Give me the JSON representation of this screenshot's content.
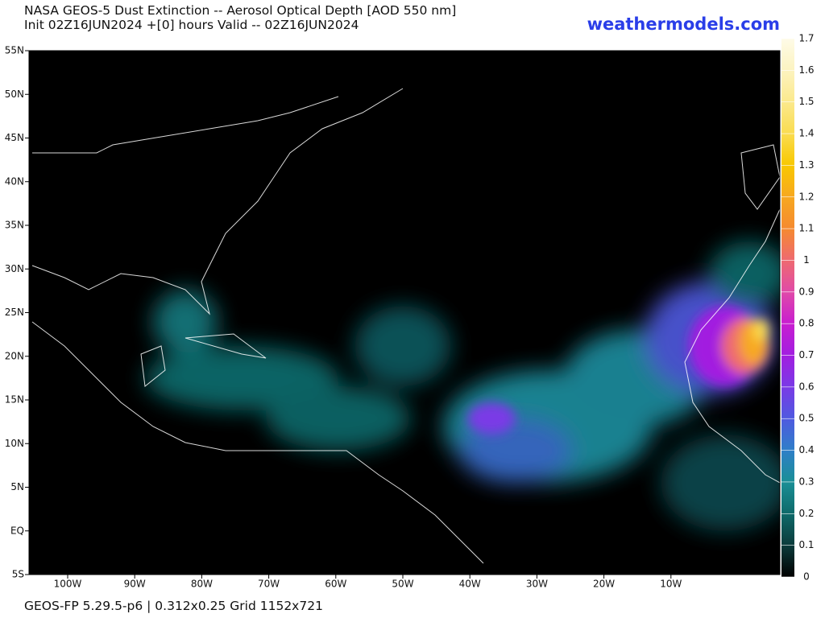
{
  "header": {
    "title": "NASA GEOS-5 Dust Extinction -- Aerosol Optical Depth [AOD 550 nm]",
    "subtitle": "Init 02Z16JUN2024 +[0] hours Valid -- 02Z16JUN2024",
    "site": "weathermodels.com"
  },
  "map": {
    "lat_labels": [
      "55N",
      "50N",
      "45N",
      "40N",
      "35N",
      "30N",
      "25N",
      "20N",
      "15N",
      "10N",
      "5N",
      "EQ",
      "5S"
    ],
    "lon_labels": [
      "100W",
      "90W",
      "80W",
      "70W",
      "60W",
      "50W",
      "40W",
      "30W",
      "20W",
      "10W"
    ]
  },
  "colorbar": {
    "ticks": [
      0,
      0.1,
      0.2,
      0.3,
      0.4,
      0.5,
      0.6,
      0.7,
      0.8,
      0.9,
      1,
      1.1,
      1.2,
      1.3,
      1.4,
      1.5,
      1.6,
      1.7
    ],
    "colors": [
      "#000000",
      "#0b3b3b",
      "#0f6a6a",
      "#1a8f96",
      "#2f7fc8",
      "#4f5ae0",
      "#7a3ae6",
      "#a21ee0",
      "#c81ed0",
      "#e04aa8",
      "#ee6a70",
      "#f58a30",
      "#f7a820",
      "#f8c800",
      "#fadc50",
      "#fbe98c",
      "#fcf3c0",
      "#fefbe8"
    ]
  },
  "footer": "GEOS-FP 5.29.5-p6 | 0.312x0.25 Grid 1152x721"
}
